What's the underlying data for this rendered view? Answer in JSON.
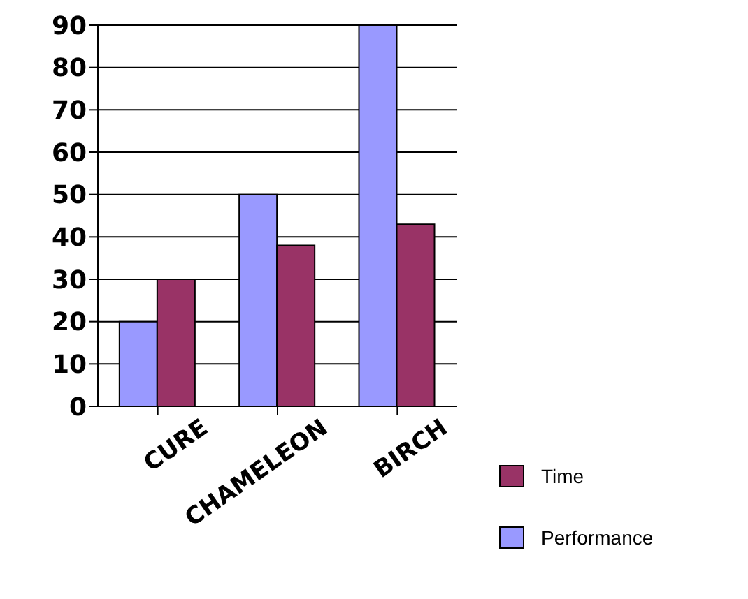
{
  "chart_data": {
    "type": "bar",
    "categories": [
      "CURE",
      "CHAMELEON",
      "BIRCH"
    ],
    "series": [
      {
        "name": "Performance",
        "color": "#9999ff",
        "values": [
          20,
          50,
          90
        ]
      },
      {
        "name": "Time",
        "color": "#993366",
        "values": [
          30,
          38,
          43
        ]
      }
    ],
    "ylim": [
      0,
      90
    ],
    "yticks": [
      0,
      10,
      20,
      30,
      40,
      50,
      60,
      70,
      80,
      90
    ],
    "grid": "y",
    "legend": "bottom right"
  }
}
